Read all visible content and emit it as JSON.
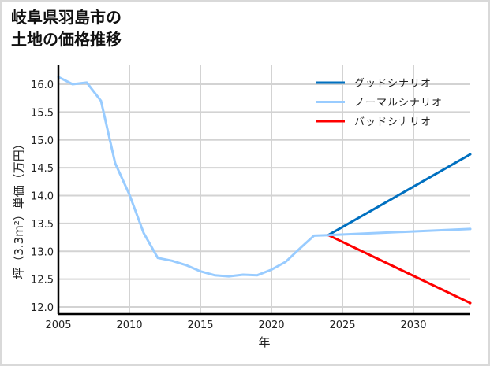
{
  "title": {
    "line1": "岐阜県羽島市の",
    "line2": "土地の価格推移"
  },
  "axes": {
    "xlabel": "年",
    "ylabel": "坪（3.3m²）単価（万円）",
    "x_ticks": [
      "2005",
      "2010",
      "2015",
      "2020",
      "2025",
      "2030"
    ],
    "y_ticks": [
      "12.0",
      "12.5",
      "13.0",
      "13.5",
      "14.0",
      "14.5",
      "15.0",
      "15.5",
      "16.0"
    ]
  },
  "legend": [
    {
      "label": "グッドシナリオ",
      "color": "#0070C0"
    },
    {
      "label": "ノーマルシナリオ",
      "color": "#99CCFF"
    },
    {
      "label": "バッドシナリオ",
      "color": "#FF0000"
    }
  ],
  "chart_data": {
    "type": "line",
    "title": "岐阜県羽島市の土地の価格推移",
    "xlabel": "年",
    "ylabel": "坪（3.3m²）単価（万円）",
    "xlim": [
      2005,
      2034
    ],
    "ylim": [
      11.85,
      16.35
    ],
    "grid": true,
    "legend_position": "upper right",
    "series": [
      {
        "name": "ノーマルシナリオ",
        "color": "#99CCFF",
        "x": [
          2005,
          2006,
          2007,
          2008,
          2009,
          2010,
          2011,
          2012,
          2013,
          2014,
          2015,
          2016,
          2017,
          2018,
          2019,
          2020,
          2021,
          2022,
          2023,
          2024,
          2034
        ],
        "values": [
          16.13,
          16.0,
          16.03,
          15.7,
          14.58,
          14.02,
          13.33,
          12.88,
          12.83,
          12.75,
          12.64,
          12.57,
          12.55,
          12.58,
          12.57,
          12.67,
          12.81,
          13.05,
          13.28,
          13.29,
          13.4
        ]
      },
      {
        "name": "グッドシナリオ",
        "color": "#0070C0",
        "x": [
          2024,
          2034
        ],
        "values": [
          13.29,
          14.74
        ]
      },
      {
        "name": "バッドシナリオ",
        "color": "#FF0000",
        "x": [
          2024,
          2034
        ],
        "values": [
          13.29,
          12.07
        ]
      }
    ]
  }
}
